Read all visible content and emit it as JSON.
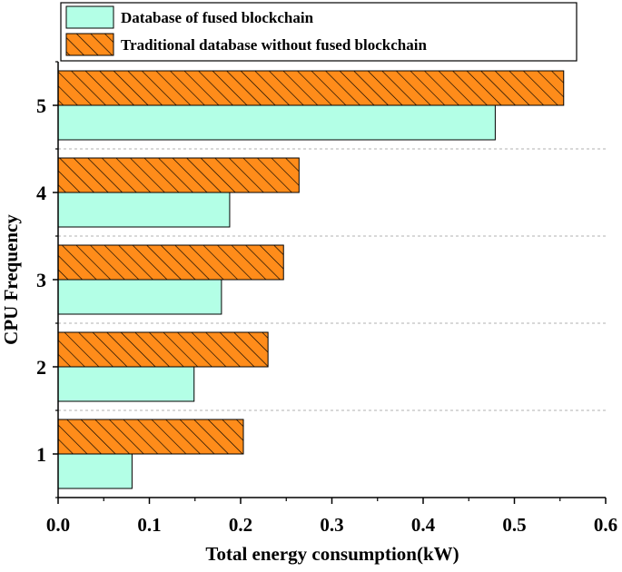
{
  "chart_data": {
    "type": "bar",
    "orientation": "horizontal",
    "categories": [
      "1",
      "2",
      "3",
      "4",
      "5"
    ],
    "series": [
      {
        "name": "Database of fused blockchain",
        "values": [
          0.081,
          0.149,
          0.179,
          0.188,
          0.479
        ],
        "color": "#b3ffe6",
        "pattern": "solid"
      },
      {
        "name": "Traditional database without fused blockchain",
        "values": [
          0.203,
          0.23,
          0.247,
          0.264,
          0.554
        ],
        "color": "#ff8c1a",
        "pattern": "hatched"
      }
    ],
    "xlabel": "Total energy consumption(kW)",
    "ylabel": "CPU Frequency",
    "xlim": [
      0,
      0.6
    ],
    "xticks": [
      "0.0",
      "0.1",
      "0.2",
      "0.3",
      "0.4",
      "0.5",
      "0.6"
    ],
    "legend_position": "top",
    "grid": "horizontal dashed separators"
  }
}
